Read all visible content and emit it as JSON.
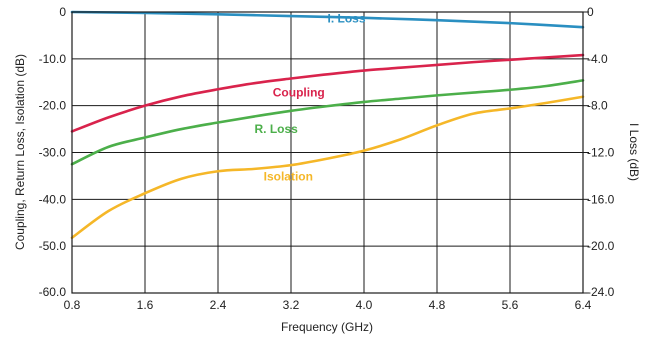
{
  "chart_data": {
    "type": "line",
    "xlabel": "Frequency (GHz)",
    "ylabel": "Coupling, Return Loss, Isolation (dB)",
    "y2label": "I Loss (dB)",
    "xlim": [
      0.8,
      6.4
    ],
    "ylim": [
      -60,
      0
    ],
    "y2lim": [
      -24,
      0
    ],
    "grid": true,
    "x_ticks": [
      0.8,
      1.6,
      2.4,
      3.2,
      4.0,
      4.8,
      5.6,
      6.4
    ],
    "x_tick_labels": [
      "0.8",
      "1.6",
      "2.4",
      "3.2",
      "4.0",
      "4.8",
      "5.6",
      "6.4"
    ],
    "y_ticks": [
      0,
      -10,
      -20,
      -30,
      -40,
      -50,
      -60
    ],
    "y_tick_labels": [
      "0",
      "-10.0",
      "-20.0",
      "-30.0",
      "-40.0",
      "-50.0",
      "-60.0"
    ],
    "y2_ticks": [
      0,
      -4,
      -8,
      -12,
      -16,
      -20,
      -24
    ],
    "y2_tick_labels": [
      "0",
      "-4.0",
      "-8.0",
      "-12.0",
      "-16.0",
      "-20.0",
      "-24.0"
    ],
    "series": [
      {
        "name": "I. Loss",
        "axis": "right",
        "color": "#2a8fc1",
        "label_at": [
          3.6,
          -0.9
        ],
        "x": [
          0.8,
          1.6,
          2.4,
          3.2,
          4.0,
          4.8,
          5.6,
          6.4
        ],
        "y": [
          0.0,
          -0.08,
          -0.2,
          -0.35,
          -0.5,
          -0.7,
          -0.95,
          -1.3
        ]
      },
      {
        "name": "Coupling",
        "axis": "left",
        "color": "#d9234c",
        "label_at": [
          3.0,
          -18.0
        ],
        "x": [
          0.8,
          1.2,
          1.6,
          2.0,
          2.4,
          2.8,
          3.2,
          3.6,
          4.0,
          4.4,
          4.8,
          5.2,
          5.6,
          6.0,
          6.4
        ],
        "y": [
          -25.5,
          -22.5,
          -20.0,
          -18.0,
          -16.5,
          -15.2,
          -14.2,
          -13.3,
          -12.5,
          -11.9,
          -11.3,
          -10.7,
          -10.2,
          -9.7,
          -9.2
        ]
      },
      {
        "name": "R. Loss",
        "axis": "left",
        "color": "#4caf4a",
        "label_at": [
          2.8,
          -25.8
        ],
        "x": [
          0.8,
          1.2,
          1.6,
          2.0,
          2.4,
          2.8,
          3.2,
          3.6,
          4.0,
          4.4,
          4.8,
          5.2,
          5.6,
          6.0,
          6.4
        ],
        "y": [
          -32.5,
          -28.8,
          -26.8,
          -25.0,
          -23.6,
          -22.3,
          -21.1,
          -20.1,
          -19.2,
          -18.5,
          -17.8,
          -17.2,
          -16.6,
          -15.8,
          -14.6
        ]
      },
      {
        "name": "Isolation",
        "axis": "left",
        "color": "#f5b728",
        "label_at": [
          2.9,
          -36.0
        ],
        "x": [
          0.8,
          1.2,
          1.6,
          2.0,
          2.4,
          2.8,
          3.2,
          3.6,
          4.0,
          4.4,
          4.8,
          5.2,
          5.6,
          6.0,
          6.4
        ],
        "y": [
          -48.2,
          -42.5,
          -38.7,
          -35.6,
          -34.0,
          -33.5,
          -32.7,
          -31.3,
          -29.6,
          -27.2,
          -24.2,
          -21.7,
          -20.6,
          -19.4,
          -18.1
        ]
      }
    ]
  }
}
